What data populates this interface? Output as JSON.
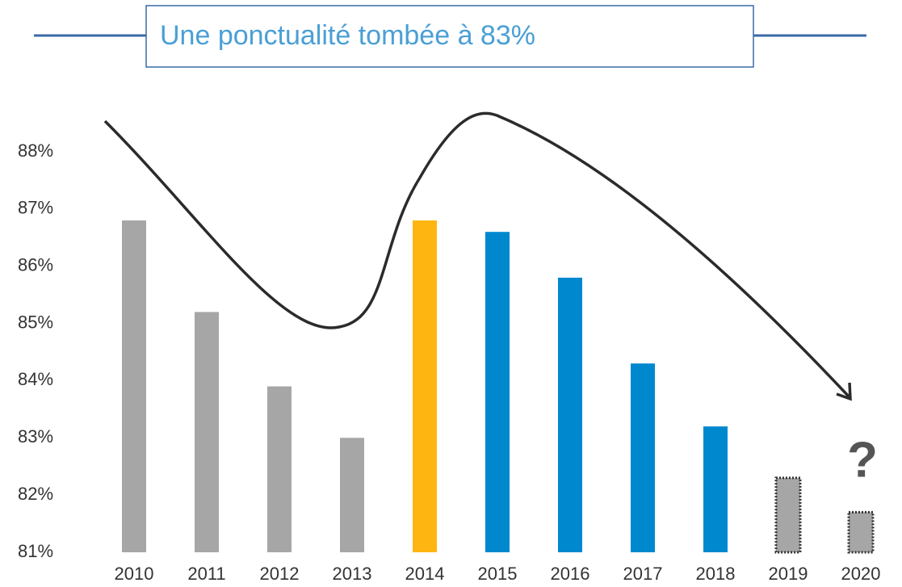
{
  "chart_data": {
    "type": "bar",
    "title": "Une ponctualité tombée à 83%",
    "categories": [
      "2010",
      "2011",
      "2012",
      "2013",
      "2014",
      "2015",
      "2016",
      "2017",
      "2018",
      "2019",
      "2020"
    ],
    "values": [
      86.8,
      85.2,
      83.9,
      83.0,
      86.8,
      86.6,
      85.8,
      84.3,
      83.2,
      82.3,
      81.7
    ],
    "colors": [
      "#a6a6a6",
      "#a6a6a6",
      "#a6a6a6",
      "#a6a6a6",
      "#ffb511",
      "#0088cf",
      "#0088cf",
      "#0088cf",
      "#0088cf",
      "#a6a6a6",
      "#a6a6a6"
    ],
    "bar_styles": [
      "solid",
      "solid",
      "solid",
      "solid",
      "solid",
      "solid",
      "solid",
      "solid",
      "solid",
      "dotted",
      "dotted"
    ],
    "ylim": [
      81,
      88
    ],
    "yticks": [
      {
        "value": 81,
        "label": "81%"
      },
      {
        "value": 82,
        "label": "82%"
      },
      {
        "value": 83,
        "label": "83%"
      },
      {
        "value": 84,
        "label": "84%"
      },
      {
        "value": 85,
        "label": "85%"
      },
      {
        "value": 86,
        "label": "86%"
      },
      {
        "value": 87,
        "label": "87%"
      },
      {
        "value": 88,
        "label": "88%"
      }
    ],
    "grid": false,
    "annotations": [
      "?"
    ]
  }
}
